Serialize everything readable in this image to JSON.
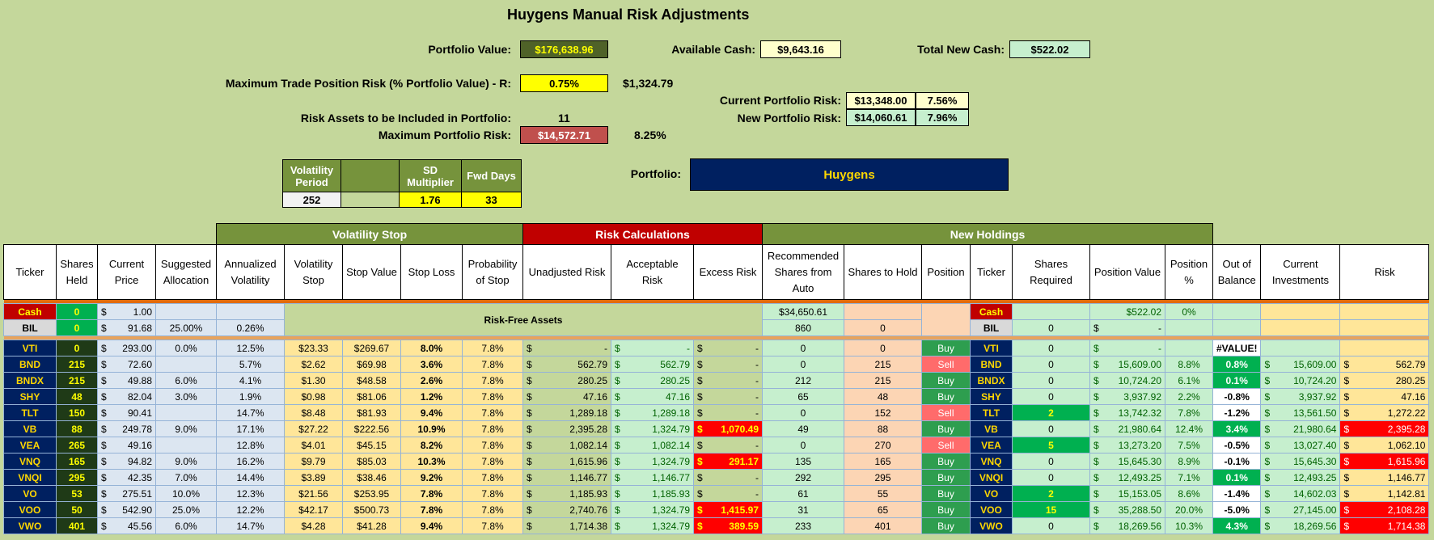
{
  "title": "Huygens Manual Risk Adjustments",
  "summary": {
    "portfolio_value_label": "Portfolio Value:",
    "portfolio_value": "$176,638.96",
    "available_cash_label": "Available Cash:",
    "available_cash": "$9,643.16",
    "total_new_cash_label": "Total New Cash:",
    "total_new_cash": "$522.02",
    "max_trade_risk_label": "Maximum Trade Position Risk (% Portfolio Value) - R:",
    "max_trade_risk_pct": "0.75%",
    "max_trade_risk_value": "$1,324.79",
    "current_risk_label": "Current Portfolio Risk:",
    "current_risk_value": "$13,348.00",
    "current_risk_pct": "7.56%",
    "new_risk_label": "New Portfolio Risk:",
    "new_risk_value": "$14,060.61",
    "new_risk_pct": "7.96%",
    "risk_assets_label": "Risk Assets to be Included in Portfolio:",
    "risk_assets_count": "11",
    "max_portfolio_risk_label": "Maximum Portfolio Risk:",
    "max_portfolio_risk_value": "$14,572.71",
    "max_portfolio_risk_pct": "8.25%",
    "portfolio_label": "Portfolio:",
    "portfolio_name": "Huygens"
  },
  "volatility_params": {
    "period_label": "Volatility Period",
    "period": "252",
    "sd_label": "SD Multiplier",
    "sd": "1.76",
    "fwd_label": "Fwd Days",
    "fwd": "33"
  },
  "groups": {
    "volatility_stop": "Volatility Stop",
    "risk_calculations": "Risk Calculations",
    "new_holdings": "New Holdings",
    "risk_free": "Risk-Free Assets"
  },
  "columns": [
    "Ticker",
    "Shares Held",
    "Current Price",
    "Suggested Allocation",
    "Annualized Volatility",
    "Volatility Stop",
    "Stop Value",
    "Stop Loss",
    "Probability of Stop",
    "Unadjusted Risk",
    "Acceptable Risk",
    "Excess Risk",
    "Recommended Shares from Auto",
    "Shares to Hold",
    "Position",
    "Ticker",
    "Shares Required",
    "Position Value",
    "Position %",
    "Out of Balance",
    "Current Investments",
    "Risk"
  ],
  "cash_row": {
    "ticker": "Cash",
    "shares": "0",
    "price": "1.00",
    "rec": "$34,650.61",
    "ticker2": "Cash",
    "pos_value": "$522.02",
    "pos_pct": "0%"
  },
  "bil_row": {
    "ticker": "BIL",
    "shares": "0",
    "price": "91.68",
    "alloc": "25.00%",
    "vol": "0.26%",
    "rec": "860",
    "hold": "0",
    "ticker2": "BIL",
    "req": "0",
    "pos_value": "-"
  },
  "rows": [
    {
      "t": "VTI",
      "sh": "0",
      "p": "293.00",
      "a": "0.0%",
      "v": "12.5%",
      "vs": "$23.33",
      "sv": "$269.67",
      "sl": "8.0%",
      "ps": "7.8%",
      "ur": "-",
      "ar": "-",
      "er": "-",
      "er_hi": false,
      "rec": "0",
      "hold": "0",
      "pos": "Buy",
      "req": "0",
      "pv": "-",
      "pp": "",
      "ob": "#VALUE!",
      "ob_style": "white",
      "ci": "",
      "risk": "",
      "risk_hi": false
    },
    {
      "t": "BND",
      "sh": "215",
      "p": "72.60",
      "a": "",
      "v": "5.7%",
      "vs": "$2.62",
      "sv": "$69.98",
      "sl": "3.6%",
      "ps": "7.8%",
      "ur": "562.79",
      "ar": "562.79",
      "er": "-",
      "er_hi": false,
      "rec": "0",
      "hold": "215",
      "pos": "Sell",
      "req": "0",
      "pv": "15,609.00",
      "pp": "8.8%",
      "ob": "0.8%",
      "ob_style": "green",
      "ci": "15,609.00",
      "risk": "562.79",
      "risk_hi": false
    },
    {
      "t": "BNDX",
      "sh": "215",
      "p": "49.88",
      "a": "6.0%",
      "v": "4.1%",
      "vs": "$1.30",
      "sv": "$48.58",
      "sl": "2.6%",
      "ps": "7.8%",
      "ur": "280.25",
      "ar": "280.25",
      "er": "-",
      "er_hi": false,
      "rec": "212",
      "hold": "215",
      "pos": "Buy",
      "req": "0",
      "pv": "10,724.20",
      "pp": "6.1%",
      "ob": "0.1%",
      "ob_style": "green",
      "ci": "10,724.20",
      "risk": "280.25",
      "risk_hi": false
    },
    {
      "t": "SHY",
      "sh": "48",
      "p": "82.04",
      "a": "3.0%",
      "v": "1.9%",
      "vs": "$0.98",
      "sv": "$81.06",
      "sl": "1.2%",
      "ps": "7.8%",
      "ur": "47.16",
      "ar": "47.16",
      "er": "-",
      "er_hi": false,
      "rec": "65",
      "hold": "48",
      "pos": "Buy",
      "req": "0",
      "pv": "3,937.92",
      "pp": "2.2%",
      "ob": "-0.8%",
      "ob_style": "white",
      "ci": "3,937.92",
      "risk": "47.16",
      "risk_hi": false
    },
    {
      "t": "TLT",
      "sh": "150",
      "p": "90.41",
      "a": "",
      "v": "14.7%",
      "vs": "$8.48",
      "sv": "$81.93",
      "sl": "9.4%",
      "ps": "7.8%",
      "ur": "1,289.18",
      "ar": "1,289.18",
      "er": "-",
      "er_hi": false,
      "rec": "0",
      "hold": "152",
      "pos": "Sell",
      "req": "2",
      "pv": "13,742.32",
      "pp": "7.8%",
      "ob": "-1.2%",
      "ob_style": "white",
      "ci": "13,561.50",
      "risk": "1,272.22",
      "risk_hi": false
    },
    {
      "t": "VB",
      "sh": "88",
      "p": "249.78",
      "a": "9.0%",
      "v": "17.1%",
      "vs": "$27.22",
      "sv": "$222.56",
      "sl": "10.9%",
      "ps": "7.8%",
      "ur": "2,395.28",
      "ar": "1,324.79",
      "er": "1,070.49",
      "er_hi": true,
      "rec": "49",
      "hold": "88",
      "pos": "Buy",
      "req": "0",
      "pv": "21,980.64",
      "pp": "12.4%",
      "ob": "3.4%",
      "ob_style": "green",
      "ci": "21,980.64",
      "risk": "2,395.28",
      "risk_hi": true
    },
    {
      "t": "VEA",
      "sh": "265",
      "p": "49.16",
      "a": "",
      "v": "12.8%",
      "vs": "$4.01",
      "sv": "$45.15",
      "sl": "8.2%",
      "ps": "7.8%",
      "ur": "1,082.14",
      "ar": "1,082.14",
      "er": "-",
      "er_hi": false,
      "rec": "0",
      "hold": "270",
      "pos": "Sell",
      "req": "5",
      "pv": "13,273.20",
      "pp": "7.5%",
      "ob": "-0.5%",
      "ob_style": "white",
      "ci": "13,027.40",
      "risk": "1,062.10",
      "risk_hi": false
    },
    {
      "t": "VNQ",
      "sh": "165",
      "p": "94.82",
      "a": "9.0%",
      "v": "16.2%",
      "vs": "$9.79",
      "sv": "$85.03",
      "sl": "10.3%",
      "ps": "7.8%",
      "ur": "1,615.96",
      "ar": "1,324.79",
      "er": "291.17",
      "er_hi": true,
      "rec": "135",
      "hold": "165",
      "pos": "Buy",
      "req": "0",
      "pv": "15,645.30",
      "pp": "8.9%",
      "ob": "-0.1%",
      "ob_style": "white",
      "ci": "15,645.30",
      "risk": "1,615.96",
      "risk_hi": true
    },
    {
      "t": "VNQI",
      "sh": "295",
      "p": "42.35",
      "a": "7.0%",
      "v": "14.4%",
      "vs": "$3.89",
      "sv": "$38.46",
      "sl": "9.2%",
      "ps": "7.8%",
      "ur": "1,146.77",
      "ar": "1,146.77",
      "er": "-",
      "er_hi": false,
      "rec": "292",
      "hold": "295",
      "pos": "Buy",
      "req": "0",
      "pv": "12,493.25",
      "pp": "7.1%",
      "ob": "0.1%",
      "ob_style": "green",
      "ci": "12,493.25",
      "risk": "1,146.77",
      "risk_hi": false
    },
    {
      "t": "VO",
      "sh": "53",
      "p": "275.51",
      "a": "10.0%",
      "v": "12.3%",
      "vs": "$21.56",
      "sv": "$253.95",
      "sl": "7.8%",
      "ps": "7.8%",
      "ur": "1,185.93",
      "ar": "1,185.93",
      "er": "-",
      "er_hi": false,
      "rec": "61",
      "hold": "55",
      "pos": "Buy",
      "req": "2",
      "pv": "15,153.05",
      "pp": "8.6%",
      "ob": "-1.4%",
      "ob_style": "white",
      "ci": "14,602.03",
      "risk": "1,142.81",
      "risk_hi": false
    },
    {
      "t": "VOO",
      "sh": "50",
      "p": "542.90",
      "a": "25.0%",
      "v": "12.2%",
      "vs": "$42.17",
      "sv": "$500.73",
      "sl": "7.8%",
      "ps": "7.8%",
      "ur": "2,740.76",
      "ar": "1,324.79",
      "er": "1,415.97",
      "er_hi": true,
      "rec": "31",
      "hold": "65",
      "pos": "Buy",
      "req": "15",
      "pv": "35,288.50",
      "pp": "20.0%",
      "ob": "-5.0%",
      "ob_style": "white",
      "ci": "27,145.00",
      "risk": "2,108.28",
      "risk_hi": true
    },
    {
      "t": "VWO",
      "sh": "401",
      "p": "45.56",
      "a": "6.0%",
      "v": "14.7%",
      "vs": "$4.28",
      "sv": "$41.28",
      "sl": "9.4%",
      "ps": "7.8%",
      "ur": "1,714.38",
      "ar": "1,324.79",
      "er": "389.59",
      "er_hi": true,
      "rec": "233",
      "hold": "401",
      "pos": "Buy",
      "req": "0",
      "pv": "18,269.56",
      "pp": "10.3%",
      "ob": "4.3%",
      "ob_style": "green",
      "ci": "18,269.56",
      "risk": "1,714.38",
      "risk_hi": true
    }
  ]
}
